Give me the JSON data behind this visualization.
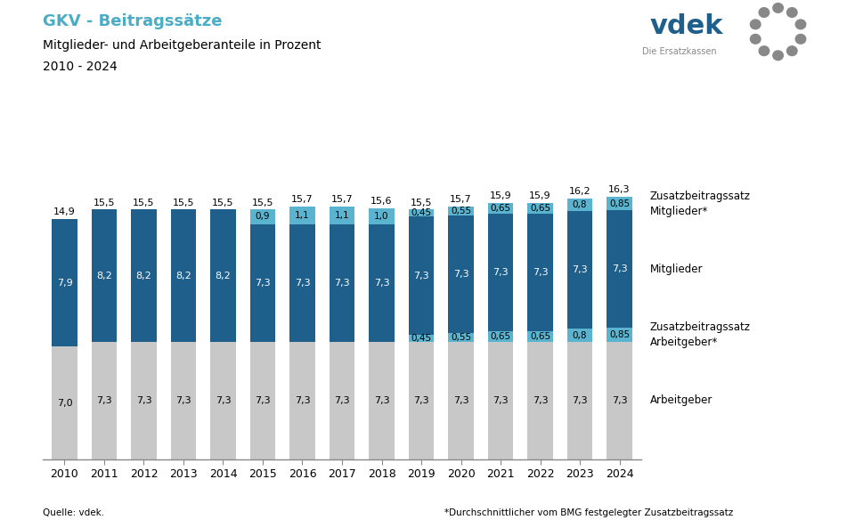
{
  "years": [
    2010,
    2011,
    2012,
    2013,
    2014,
    2015,
    2016,
    2017,
    2018,
    2019,
    2020,
    2021,
    2022,
    2023,
    2024
  ],
  "arbeitgeber": [
    7.0,
    7.3,
    7.3,
    7.3,
    7.3,
    7.3,
    7.3,
    7.3,
    7.3,
    7.3,
    7.3,
    7.3,
    7.3,
    7.3,
    7.3
  ],
  "zusatz_arbeitgeber": [
    0.0,
    0.0,
    0.0,
    0.0,
    0.0,
    0.0,
    0.0,
    0.0,
    0.0,
    0.45,
    0.55,
    0.65,
    0.65,
    0.8,
    0.85
  ],
  "mitglieder": [
    7.9,
    8.2,
    8.2,
    8.2,
    8.2,
    7.3,
    7.3,
    7.3,
    7.3,
    7.3,
    7.3,
    7.3,
    7.3,
    7.3,
    7.3
  ],
  "zusatz_mitglieder": [
    0.0,
    0.0,
    0.0,
    0.0,
    0.0,
    0.9,
    1.1,
    1.1,
    1.0,
    0.45,
    0.55,
    0.65,
    0.65,
    0.8,
    0.85
  ],
  "totals": [
    14.9,
    15.5,
    15.5,
    15.5,
    15.5,
    15.5,
    15.7,
    15.7,
    15.6,
    15.5,
    15.7,
    15.9,
    15.9,
    16.2,
    16.3
  ],
  "color_arbeitgeber": "#c8c8c8",
  "color_zusatz_arbeitgeber": "#5ab4d0",
  "color_mitglieder": "#1e5f8c",
  "color_zusatz_mitglieder": "#5ab4d0",
  "title_line1": "GKV - Beitragssätze",
  "title_line2": "Mitglieder- und Arbeitgeberanteile in Prozent",
  "title_line3": "2010 - 2024",
  "label_arbeitgeber": "Arbeitgeber",
  "label_zusatz_arbeitgeber": "Zusatzbeitragssatz\nArbeitgeber*",
  "label_mitglieder": "Mitglieder",
  "label_zusatz_mitglieder": "Zusatzbeitragssatz\nMitglieder*",
  "footer_left": "Quelle: vdek.",
  "footer_right": "*Durchschnittlicher vom BMG festgelegter Zusatzbeitragssatz",
  "background_color": "#ffffff",
  "title_color": "#4bacc6",
  "vdek_color": "#1e5f8c",
  "vdek_circle_color": "#888888"
}
